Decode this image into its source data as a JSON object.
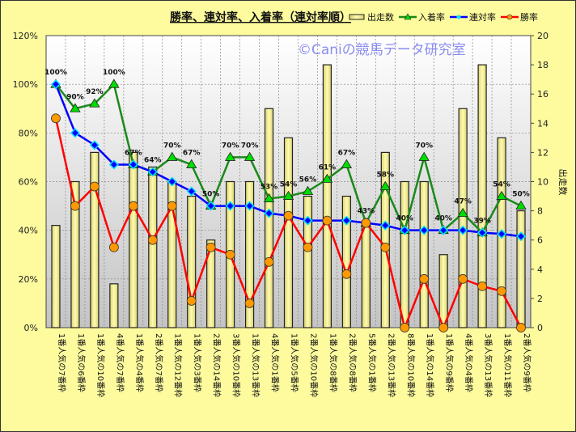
{
  "chart_data": {
    "type": "bar+line",
    "title": "勝率、連対率、入着率（連対率順）",
    "watermark": "©Caniの競馬データ研究室",
    "categories": [
      "1番人気の7番枠",
      "1番人気の6番枠",
      "1番人気の10番枠",
      "4番人気の7番枠",
      "1番人気の4番枠",
      "2番人気の7番枠",
      "1番人気の12番枠",
      "1番人気の3番枠",
      "2番人気の14番枠",
      "3番人気の10番枠",
      "1番人気の13番枠",
      "4番人気の1番枠",
      "1番人気の5番枠",
      "2番人気の10番枠",
      "1番人気の8番枠",
      "2番人気の8番枠",
      "5番人気の1番枠",
      "2番人気の13番枠",
      "8番人気の10番枠",
      "1番人気の14番枠",
      "1番人気の9番枠",
      "4番人気の4番枠",
      "3番人気の13番枠",
      "1番人気の11番枠",
      "2番人気の9番枠"
    ],
    "series": [
      {
        "name": "出走数",
        "type": "bar",
        "axis": "right",
        "color": "#f5f08a",
        "values": [
          7,
          10,
          12,
          3,
          12,
          11,
          10,
          9,
          6,
          10,
          10,
          15,
          13,
          9,
          18,
          9,
          7,
          12,
          10,
          10,
          5,
          15,
          18,
          13,
          8
        ]
      },
      {
        "name": "入着率",
        "type": "line",
        "axis": "left",
        "color": "#1a8a1a",
        "marker": "#00dd00",
        "values": [
          100,
          90,
          92,
          100,
          67,
          64,
          70,
          67,
          50,
          70,
          70,
          53,
          54,
          56,
          61,
          67,
          43,
          58,
          40,
          70,
          40,
          47,
          39,
          54,
          50
        ],
        "labels": [
          "100%",
          "90%",
          "92%",
          "100%",
          "67%",
          "64%",
          "70%",
          "67%",
          "50%",
          "70%",
          "70%",
          "53%",
          "54%",
          "56%",
          "61%",
          "67%",
          "43%",
          "58%",
          "40%",
          "70%",
          "40%",
          "47%",
          "39%",
          "54%",
          "50%"
        ]
      },
      {
        "name": "連対率",
        "type": "line",
        "axis": "left",
        "color": "#0000ff",
        "marker": "#00e0ff",
        "values": [
          100,
          80,
          75,
          67,
          67,
          64,
          60,
          56,
          50,
          50,
          50,
          47,
          46,
          44,
          44,
          44,
          43,
          42,
          40,
          40,
          40,
          40,
          39,
          38.5,
          37.5
        ]
      },
      {
        "name": "勝率",
        "type": "line",
        "axis": "left",
        "color": "#ff0000",
        "marker": "#ff9900",
        "values": [
          86,
          50,
          58,
          33,
          50,
          36,
          50,
          11,
          33,
          30,
          10,
          27,
          46,
          33,
          44,
          22,
          43,
          33,
          0,
          20,
          0,
          20,
          17,
          15,
          0
        ]
      }
    ],
    "left_axis": {
      "ylim": [
        0,
        120
      ],
      "ticks": [
        "0%",
        "20%",
        "40%",
        "60%",
        "80%",
        "100%",
        "120%"
      ]
    },
    "right_axis": {
      "label": "出走数",
      "ylim": [
        0,
        20
      ],
      "ticks": [
        "0",
        "2",
        "4",
        "6",
        "8",
        "10",
        "12",
        "14",
        "16",
        "18",
        "20"
      ]
    },
    "legend": {
      "placement": "top-right",
      "items": [
        "出走数",
        "入着率",
        "連対率",
        "勝率"
      ]
    },
    "grid": true
  }
}
